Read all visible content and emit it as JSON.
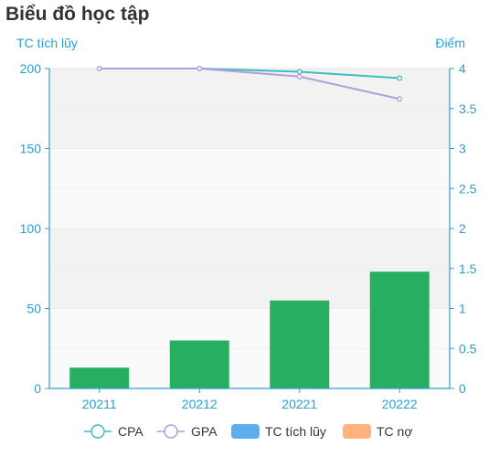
{
  "header": {
    "title": "Biểu đồ học tập"
  },
  "chart_data": {
    "type": "bar",
    "title": "Biểu đồ học tập",
    "categories": [
      "20211",
      "20212",
      "20221",
      "20222"
    ],
    "y_left": {
      "label": "TC tích lũy",
      "ylim": [
        0,
        200
      ],
      "ticks": [
        "0",
        "50",
        "100",
        "150",
        "200"
      ]
    },
    "y_right": {
      "label": "Điểm",
      "ylim": [
        0,
        4
      ],
      "ticks": [
        "0",
        "0.5",
        "1",
        "1.5",
        "2",
        "2.5",
        "3",
        "3.5",
        "4"
      ]
    },
    "series": [
      {
        "name": "CPA",
        "type": "line",
        "axis": "right",
        "color": "#3bbfbf",
        "values": [
          4.0,
          4.0,
          3.96,
          3.88
        ]
      },
      {
        "name": "GPA",
        "type": "line",
        "axis": "right",
        "color": "#b39ddb",
        "values": [
          4.0,
          4.0,
          3.9,
          3.62
        ]
      },
      {
        "name": "TC tích lũy",
        "type": "bar",
        "axis": "left",
        "color": "#27ae60",
        "legend_color": "#5aaeed",
        "values": [
          13,
          30,
          55,
          73
        ]
      },
      {
        "name": "TC nợ",
        "type": "bar",
        "axis": "left",
        "color": "#ffb27d",
        "values": [
          0,
          0,
          0,
          0
        ]
      }
    ],
    "grid": true,
    "legend_position": "bottom",
    "axis_color": "#2aa0d0"
  }
}
